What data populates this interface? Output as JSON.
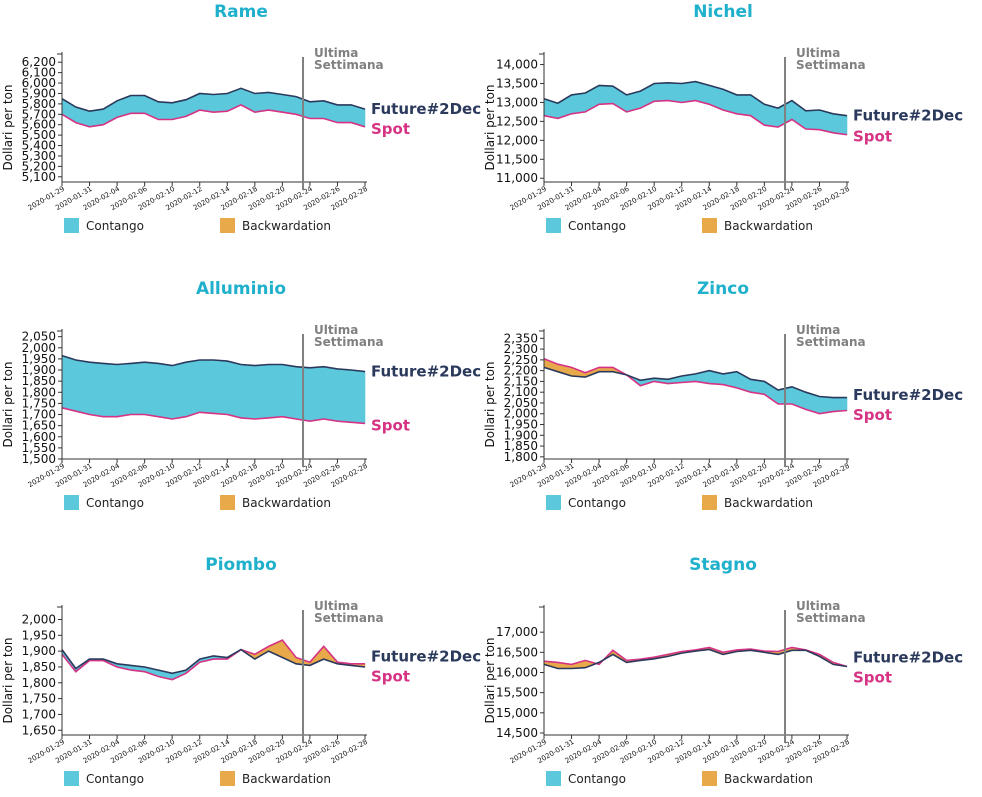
{
  "colors": {
    "title": "#1fb0cc",
    "future": "#2b3a5c",
    "spot": "#d63384",
    "contango": "#5bc8dc",
    "backwardation": "#e8a94a",
    "divider": "#808080",
    "annotation": "#808080"
  },
  "common": {
    "ylabel": "Dollari per ton",
    "annotation_line1": "Ultima",
    "annotation_line2": "Settimana",
    "future_label": "Future#2Dec",
    "spot_label": "Spot",
    "legend_contango": "Contango",
    "legend_backwardation": "Backwardation",
    "xticks": [
      "2020-01-29",
      "2020-01-31",
      "2020-02-04",
      "2020-02-06",
      "2020-02-10",
      "2020-02-12",
      "2020-02-14",
      "2020-02-18",
      "2020-02-20",
      "2020-02-24",
      "2020-02-26",
      "2020-02-28"
    ],
    "divider_at": "2020-02-21"
  },
  "chart_data": [
    {
      "type": "area",
      "title": "Rame",
      "ylim": [
        5050,
        6250
      ],
      "yticks": [
        "5,100",
        "5,200",
        "5,300",
        "5,400",
        "5,500",
        "5,600",
        "5,700",
        "5,800",
        "5,900",
        "6,000",
        "6,100",
        "6,200"
      ],
      "ytick_values": [
        5100,
        5200,
        5300,
        5400,
        5500,
        5600,
        5700,
        5800,
        5900,
        6000,
        6100,
        6200
      ],
      "x": [
        0,
        1,
        2,
        3,
        4,
        5,
        6,
        7,
        8,
        9,
        10,
        11,
        12,
        13,
        14,
        15,
        16,
        17,
        18,
        19,
        20,
        21,
        22
      ],
      "series": [
        {
          "name": "Future#2Dec",
          "values": [
            5850,
            5770,
            5730,
            5750,
            5830,
            5880,
            5880,
            5820,
            5810,
            5840,
            5900,
            5890,
            5900,
            5950,
            5900,
            5910,
            5890,
            5870,
            5820,
            5830,
            5790,
            5790,
            5750
          ]
        },
        {
          "name": "Spot",
          "values": [
            5700,
            5620,
            5580,
            5600,
            5670,
            5710,
            5710,
            5650,
            5650,
            5680,
            5740,
            5720,
            5730,
            5790,
            5720,
            5740,
            5720,
            5700,
            5660,
            5660,
            5620,
            5620,
            5580
          ]
        }
      ]
    },
    {
      "type": "area",
      "title": "Nichel",
      "ylim": [
        10900,
        14200
      ],
      "yticks": [
        "11,000",
        "11,500",
        "12,000",
        "12,500",
        "13,000",
        "13,500",
        "14,000"
      ],
      "ytick_values": [
        11000,
        11500,
        12000,
        12500,
        13000,
        13500,
        14000
      ],
      "x": [
        0,
        1,
        2,
        3,
        4,
        5,
        6,
        7,
        8,
        9,
        10,
        11,
        12,
        13,
        14,
        15,
        16,
        17,
        18,
        19,
        20,
        21,
        22
      ],
      "series": [
        {
          "name": "Future#2Dec",
          "values": [
            13100,
            12980,
            13200,
            13250,
            13450,
            13430,
            13200,
            13300,
            13500,
            13520,
            13500,
            13550,
            13450,
            13350,
            13200,
            13200,
            12950,
            12850,
            13050,
            12780,
            12800,
            12700,
            12650
          ]
        },
        {
          "name": "Spot",
          "values": [
            12650,
            12580,
            12700,
            12750,
            12950,
            12970,
            12750,
            12850,
            13030,
            13050,
            13000,
            13050,
            12950,
            12800,
            12700,
            12650,
            12400,
            12350,
            12550,
            12300,
            12280,
            12200,
            12150
          ]
        }
      ]
    },
    {
      "type": "area",
      "title": "Alluminio",
      "ylim": [
        1500,
        2062
      ],
      "yticks": [
        "1,500",
        "1,550",
        "1,600",
        "1,650",
        "1,700",
        "1,750",
        "1,800",
        "1,850",
        "1,900",
        "1,950",
        "2,000",
        "2,050"
      ],
      "ytick_values": [
        1500,
        1550,
        1600,
        1650,
        1700,
        1750,
        1800,
        1850,
        1900,
        1950,
        2000,
        2050
      ],
      "x": [
        0,
        1,
        2,
        3,
        4,
        5,
        6,
        7,
        8,
        9,
        10,
        11,
        12,
        13,
        14,
        15,
        16,
        17,
        18,
        19,
        20,
        21,
        22
      ],
      "series": [
        {
          "name": "Future#2Dec",
          "values": [
            1965,
            1945,
            1935,
            1930,
            1925,
            1930,
            1935,
            1930,
            1920,
            1935,
            1945,
            1945,
            1940,
            1925,
            1920,
            1925,
            1925,
            1915,
            1910,
            1915,
            1905,
            1900,
            1893
          ]
        },
        {
          "name": "Spot",
          "values": [
            1730,
            1715,
            1700,
            1690,
            1690,
            1700,
            1700,
            1690,
            1680,
            1690,
            1710,
            1705,
            1700,
            1685,
            1680,
            1685,
            1690,
            1680,
            1670,
            1680,
            1670,
            1665,
            1660
          ]
        }
      ]
    },
    {
      "type": "area",
      "title": "Zinco",
      "ylim": [
        1790,
        2370
      ],
      "yticks": [
        "1,800",
        "1,850",
        "1,900",
        "1,950",
        "2,000",
        "2,050",
        "2,100",
        "2,150",
        "2,200",
        "2,250",
        "2,300",
        "2,350"
      ],
      "ytick_values": [
        1800,
        1850,
        1900,
        1950,
        2000,
        2050,
        2100,
        2150,
        2200,
        2250,
        2300,
        2350
      ],
      "x": [
        0,
        1,
        2,
        3,
        4,
        5,
        6,
        7,
        8,
        9,
        10,
        11,
        12,
        13,
        14,
        15,
        16,
        17,
        18,
        19,
        20,
        21,
        22
      ],
      "series": [
        {
          "name": "Future#2Dec",
          "values": [
            2215,
            2195,
            2175,
            2170,
            2195,
            2195,
            2180,
            2155,
            2165,
            2160,
            2175,
            2185,
            2200,
            2185,
            2195,
            2160,
            2150,
            2110,
            2125,
            2100,
            2080,
            2075,
            2075
          ]
        },
        {
          "name": "Spot",
          "values": [
            2255,
            2230,
            2215,
            2190,
            2215,
            2215,
            2180,
            2130,
            2150,
            2140,
            2145,
            2150,
            2140,
            2135,
            2120,
            2100,
            2090,
            2045,
            2045,
            2020,
            2000,
            2010,
            2015
          ]
        }
      ]
    },
    {
      "type": "area",
      "title": "Piombo",
      "ylim": [
        1635,
        2030
      ],
      "yticks": [
        "1,650",
        "1,700",
        "1,750",
        "1,800",
        "1,850",
        "1,900",
        "1,950",
        "2,000"
      ],
      "ytick_values": [
        1650,
        1700,
        1750,
        1800,
        1850,
        1900,
        1950,
        2000
      ],
      "x": [
        0,
        1,
        2,
        3,
        4,
        5,
        6,
        7,
        8,
        9,
        10,
        11,
        12,
        13,
        14,
        15,
        16,
        17,
        18,
        19,
        20,
        21,
        22
      ],
      "series": [
        {
          "name": "Future#2Dec",
          "values": [
            1905,
            1845,
            1875,
            1875,
            1860,
            1855,
            1850,
            1840,
            1830,
            1840,
            1875,
            1885,
            1880,
            1905,
            1875,
            1900,
            1880,
            1860,
            1855,
            1875,
            1860,
            1855,
            1850
          ]
        },
        {
          "name": "Spot",
          "values": [
            1890,
            1835,
            1870,
            1870,
            1850,
            1840,
            1835,
            1820,
            1810,
            1830,
            1865,
            1875,
            1875,
            1905,
            1890,
            1915,
            1935,
            1880,
            1865,
            1915,
            1865,
            1860,
            1860
          ]
        }
      ]
    },
    {
      "type": "area",
      "title": "Stagno",
      "ylim": [
        14450,
        17550
      ],
      "yticks": [
        "14,500",
        "15,000",
        "15,500",
        "16,000",
        "16,500",
        "17,000"
      ],
      "ytick_values": [
        14500,
        15000,
        15500,
        16000,
        16500,
        17000
      ],
      "x": [
        0,
        1,
        2,
        3,
        4,
        5,
        6,
        7,
        8,
        9,
        10,
        11,
        12,
        13,
        14,
        15,
        16,
        17,
        18,
        19,
        20,
        21,
        22
      ],
      "series": [
        {
          "name": "Future#2Dec",
          "values": [
            16200,
            16100,
            16100,
            16120,
            16250,
            16450,
            16250,
            16300,
            16340,
            16400,
            16480,
            16530,
            16570,
            16450,
            16520,
            16550,
            16500,
            16450,
            16550,
            16550,
            16400,
            16200,
            16150
          ]
        },
        {
          "name": "Spot",
          "values": [
            16280,
            16250,
            16200,
            16300,
            16200,
            16550,
            16300,
            16330,
            16380,
            16450,
            16520,
            16560,
            16620,
            16500,
            16560,
            16580,
            16530,
            16520,
            16620,
            16560,
            16450,
            16250,
            16150
          ]
        }
      ]
    }
  ]
}
